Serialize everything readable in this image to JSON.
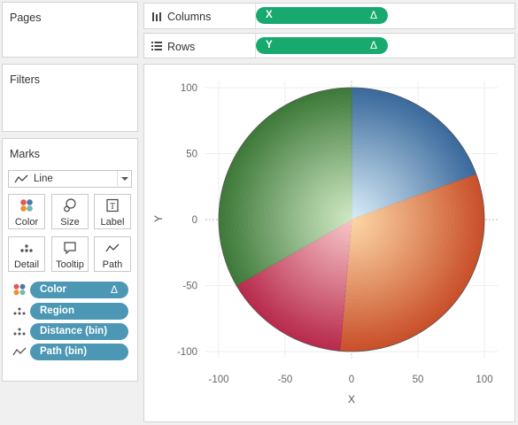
{
  "pages": {
    "title": "Pages"
  },
  "filters": {
    "title": "Filters"
  },
  "marks": {
    "title": "Marks",
    "mark_type": "Line",
    "buttons": [
      {
        "label": "Color",
        "icon": "color-dots-icon"
      },
      {
        "label": "Size",
        "icon": "size-icon"
      },
      {
        "label": "Label",
        "icon": "label-icon"
      },
      {
        "label": "Detail",
        "icon": "detail-dots-icon"
      },
      {
        "label": "Tooltip",
        "icon": "tooltip-icon"
      },
      {
        "label": "Path",
        "icon": "path-icon"
      }
    ],
    "pills": [
      {
        "label": "Color",
        "suffix": "Δ",
        "icon": "color-dots-icon"
      },
      {
        "label": "Region",
        "suffix": "",
        "icon": "detail-dots-icon"
      },
      {
        "label": "Distance (bin)",
        "suffix": "",
        "icon": "detail-dots-icon"
      },
      {
        "label": "Path (bin)",
        "suffix": "",
        "icon": "path-icon"
      }
    ]
  },
  "shelves": {
    "columns": {
      "label": "Columns",
      "pill": "X",
      "suffix": "Δ"
    },
    "rows": {
      "label": "Rows",
      "pill": "Y",
      "suffix": "Δ"
    }
  },
  "chart_data": {
    "type": "line",
    "description_kind": "radial pie built from line paths",
    "xlabel": "X",
    "ylabel": "Y",
    "xlim": [
      -110,
      110
    ],
    "ylim": [
      -105,
      105
    ],
    "x_ticks": [
      -100,
      -50,
      0,
      50,
      100
    ],
    "y_ticks": [
      100,
      50,
      0,
      -50,
      -100
    ],
    "radius": 100,
    "grid": true,
    "segments": [
      {
        "name": "blue",
        "start_deg": 90,
        "end_deg": 20,
        "color_center": "#d8ecf7",
        "color_edge": "#3b6a9c"
      },
      {
        "name": "orange",
        "start_deg": 20,
        "end_deg": -95,
        "color_center": "#fcd7a6",
        "color_edge": "#c9502a"
      },
      {
        "name": "red",
        "start_deg": -95,
        "end_deg": -150,
        "color_center": "#f7c5c8",
        "color_edge": "#b82b4d"
      },
      {
        "name": "green",
        "start_deg": -150,
        "end_deg": -270,
        "color_center": "#cfe8c4",
        "color_edge": "#3f7a3a"
      }
    ]
  }
}
